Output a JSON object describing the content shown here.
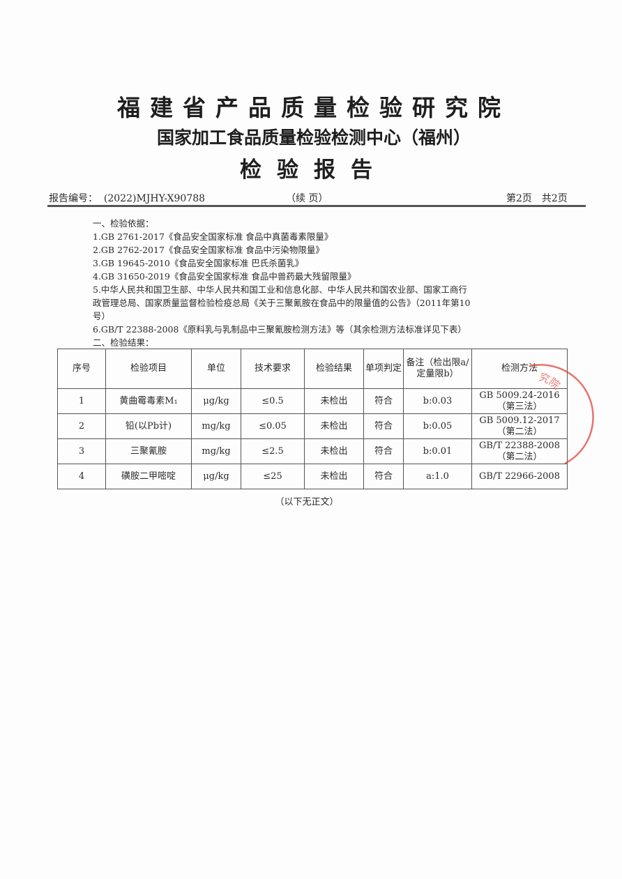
{
  "header": {
    "institute": "福建省产品质量检验研究院",
    "center": "国家加工食品质量检验检测中心（福州）",
    "doc_title": "检验报告"
  },
  "meta": {
    "report_no_label": "报告编号：",
    "report_no": "(2022)MJHY-X90788",
    "continued": "（续 页）",
    "page": "第2页　共2页"
  },
  "basis": {
    "heading": "一、检验依据：",
    "lines": [
      "1.GB 2761-2017《食品安全国家标准 食品中真菌毒素限量》",
      "2.GB 2762-2017《食品安全国家标准 食品中污染物限量》",
      "3.GB 19645-2010《食品安全国家标准 巴氏杀菌乳》",
      "4.GB 31650-2019《食品安全国家标准 食品中兽药最大残留限量》",
      "5.中华人民共和国卫生部、中华人民共和国工业和信息化部、中华人民共和国农业部、国家工商行",
      "政管理总局、国家质量监督检验检疫总局《关于三聚氰胺在食品中的限量值的公告》（2011年第10",
      "号）",
      "6.GB/T 22388-2008《原料乳与乳制品中三聚氰胺检测方法》等（其余检测方法标准详见下表）"
    ]
  },
  "results": {
    "heading": "二、检验结果：",
    "columns": [
      "序号",
      "检验项目",
      "单位",
      "技术要求",
      "检验结果",
      "单项判定",
      "备注（检出限a/定量限b）",
      "检测方法"
    ],
    "rows": [
      [
        "1",
        "黄曲霉毒素M₁",
        "μg/kg",
        "≤0.5",
        "未检出",
        "符合",
        "b:0.03",
        "GB 5009.24-2016（第三法）"
      ],
      [
        "2",
        "铅(以Pb计)",
        "mg/kg",
        "≤0.05",
        "未检出",
        "符合",
        "b:0.05",
        "GB 5009.12-2017（第二法）"
      ],
      [
        "3",
        "三聚氰胺",
        "mg/kg",
        "≤2.5",
        "未检出",
        "符合",
        "b:0.01",
        "GB/T 22388-2008（第二法）"
      ],
      [
        "4",
        "磺胺二甲嘧啶",
        "μg/kg",
        "≤25",
        "未检出",
        "符合",
        "a:1.0",
        "GB/T 22966-2008"
      ]
    ],
    "footer": "（以下无正文）"
  },
  "stamp": {
    "text": "福建省产品质量检验研究院",
    "color": "#e0443c"
  }
}
